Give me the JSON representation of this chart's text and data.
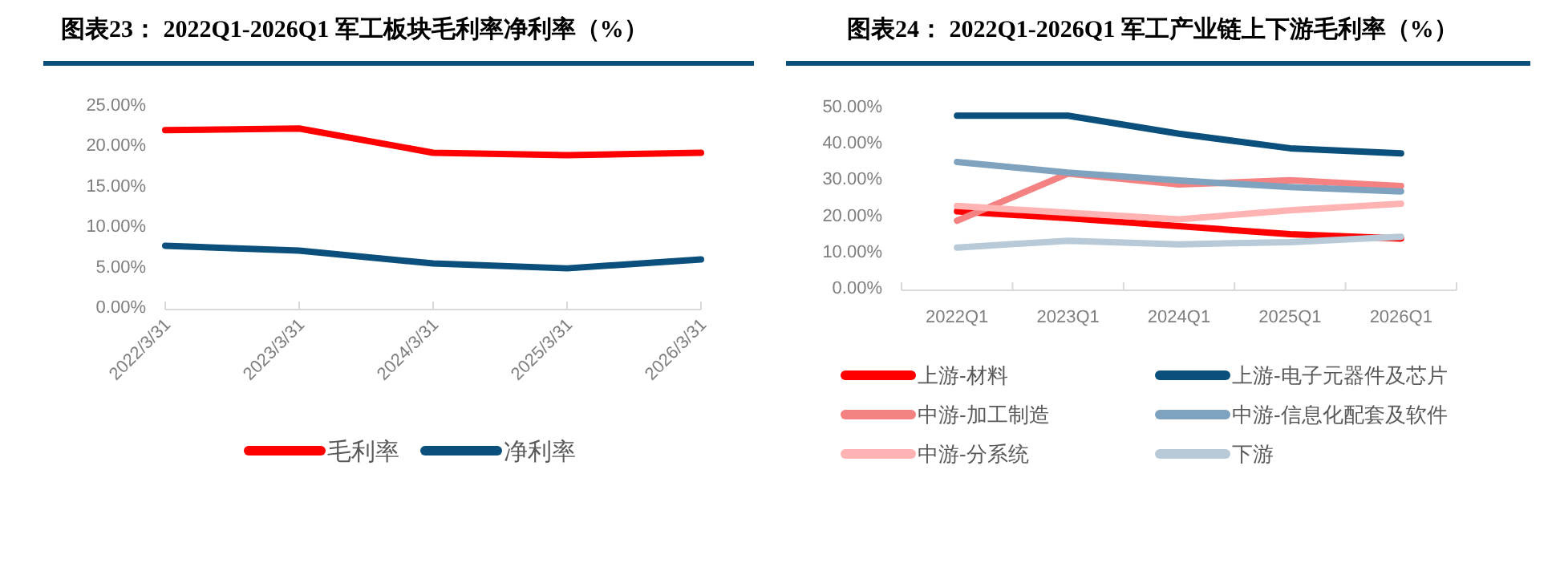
{
  "chart_data": [
    {
      "type": "line",
      "title": "图表23： 2022Q1-2026Q1 军工板块毛利率净利率（%）",
      "categories": [
        "2022/3/31",
        "2023/3/31",
        "2024/3/31",
        "2025/3/31",
        "2026/3/31"
      ],
      "series": [
        {
          "name": "毛利率",
          "color": "#ff0000",
          "values": [
            21.8,
            22.0,
            19.0,
            18.7,
            19.0
          ]
        },
        {
          "name": "净利率",
          "color": "#0b4f7c",
          "values": [
            7.5,
            6.9,
            5.3,
            4.7,
            5.8
          ]
        }
      ],
      "ylim": [
        0,
        25
      ],
      "yticks": [
        {
          "value": 0,
          "label": "0.00%"
        },
        {
          "value": 5,
          "label": "5.00%"
        },
        {
          "value": 10,
          "label": "10.00%"
        },
        {
          "value": 15,
          "label": "15.00%"
        },
        {
          "value": 20,
          "label": "20.00%"
        },
        {
          "value": 25,
          "label": "25.00%"
        }
      ],
      "legend": "bottom"
    },
    {
      "type": "line",
      "title": "图表24： 2022Q1-2026Q1 军工产业链上下游毛利率（%）",
      "categories": [
        "2022Q1",
        "2023Q1",
        "2024Q1",
        "2025Q1",
        "2026Q1"
      ],
      "series": [
        {
          "name": "上游-材料",
          "color": "#ff0000",
          "values": [
            20.9,
            19.0,
            16.8,
            14.6,
            13.4
          ]
        },
        {
          "name": "上游-电子元器件及芯片",
          "color": "#0b4f7c",
          "values": [
            47.3,
            47.3,
            42.3,
            38.3,
            36.9
          ]
        },
        {
          "name": "中游-加工制造",
          "color": "#f48282",
          "values": [
            18.3,
            31.3,
            28.3,
            29.5,
            27.9
          ]
        },
        {
          "name": "中游-信息化配套及软件",
          "color": "#7fa3bf",
          "values": [
            34.5,
            31.6,
            29.4,
            27.6,
            26.4
          ]
        },
        {
          "name": "中游-分系统",
          "color": "#ffb3b3",
          "values": [
            22.4,
            20.5,
            18.7,
            21.2,
            23.0
          ]
        },
        {
          "name": "下游",
          "color": "#b8cad8",
          "values": [
            10.9,
            12.8,
            11.8,
            12.4,
            13.9
          ]
        }
      ],
      "ylim": [
        0,
        50
      ],
      "yticks": [
        {
          "value": 0,
          "label": "0.00%"
        },
        {
          "value": 10,
          "label": "10.00%"
        },
        {
          "value": 20,
          "label": "20.00%"
        },
        {
          "value": 30,
          "label": "30.00%"
        },
        {
          "value": 40,
          "label": "40.00%"
        },
        {
          "value": 50,
          "label": "50.00%"
        }
      ],
      "legend": "bottom"
    }
  ]
}
